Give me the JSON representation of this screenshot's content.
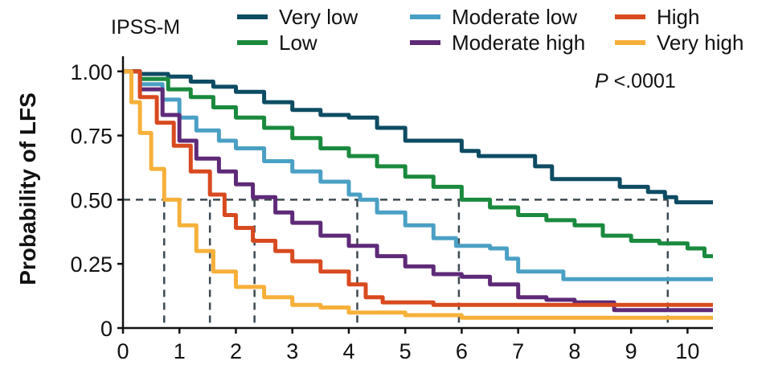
{
  "chart_data": {
    "type": "line",
    "title": "",
    "group_label": "IPSS-M",
    "xlabel": "",
    "ylabel": "Probability of LFS",
    "xlim": [
      0,
      10.45
    ],
    "ylim": [
      0,
      1.04
    ],
    "x_ticks": [
      "0",
      "1",
      "2",
      "3",
      "4",
      "5",
      "6",
      "7",
      "8",
      "9",
      "10"
    ],
    "y_ticks": [
      {
        "value": 0,
        "label": "0"
      },
      {
        "value": 0.25,
        "label": "0.25"
      },
      {
        "value": 0.5,
        "label": "0.50"
      },
      {
        "value": 0.75,
        "label": "0.75"
      },
      {
        "value": 1.0,
        "label": "1.00"
      }
    ],
    "annotation": {
      "p_italic": "P",
      "p_rest": " <.0001"
    },
    "median_reference_y": 0.5,
    "medians": [
      {
        "series": "Very high",
        "x": 0.73
      },
      {
        "series": "High",
        "x": 1.54
      },
      {
        "series": "Moderate high",
        "x": 2.33
      },
      {
        "series": "Moderate low",
        "x": 4.15
      },
      {
        "series": "Low",
        "x": 5.95
      },
      {
        "series": "Very low",
        "x": 9.65
      }
    ],
    "grid": false,
    "legend_position": "top",
    "series": [
      {
        "name": "Very low",
        "color": "#0d4c63",
        "points": [
          [
            0,
            1.0
          ],
          [
            0.3,
            0.99
          ],
          [
            0.8,
            0.98
          ],
          [
            1.2,
            0.96
          ],
          [
            1.6,
            0.94
          ],
          [
            2.0,
            0.92
          ],
          [
            2.5,
            0.88
          ],
          [
            3.0,
            0.85
          ],
          [
            3.5,
            0.83
          ],
          [
            4.0,
            0.82
          ],
          [
            4.5,
            0.78
          ],
          [
            5.0,
            0.73
          ],
          [
            5.5,
            0.73
          ],
          [
            6.0,
            0.69
          ],
          [
            6.3,
            0.67
          ],
          [
            6.8,
            0.67
          ],
          [
            7.3,
            0.63
          ],
          [
            7.6,
            0.58
          ],
          [
            8.0,
            0.58
          ],
          [
            8.5,
            0.58
          ],
          [
            8.8,
            0.55
          ],
          [
            9.3,
            0.53
          ],
          [
            9.6,
            0.51
          ],
          [
            9.8,
            0.49
          ],
          [
            10.45,
            0.49
          ]
        ]
      },
      {
        "name": "Low",
        "color": "#1a8a3e",
        "points": [
          [
            0,
            1.0
          ],
          [
            0.3,
            0.97
          ],
          [
            0.8,
            0.93
          ],
          [
            1.2,
            0.9
          ],
          [
            1.6,
            0.86
          ],
          [
            2.0,
            0.82
          ],
          [
            2.5,
            0.78
          ],
          [
            3.0,
            0.74
          ],
          [
            3.5,
            0.7
          ],
          [
            4.0,
            0.67
          ],
          [
            4.5,
            0.63
          ],
          [
            5.0,
            0.59
          ],
          [
            5.5,
            0.55
          ],
          [
            6.0,
            0.5
          ],
          [
            6.5,
            0.47
          ],
          [
            7.0,
            0.44
          ],
          [
            7.5,
            0.42
          ],
          [
            8.0,
            0.4
          ],
          [
            8.5,
            0.36
          ],
          [
            9.0,
            0.34
          ],
          [
            9.5,
            0.33
          ],
          [
            10.0,
            0.31
          ],
          [
            10.3,
            0.28
          ],
          [
            10.45,
            0.28
          ]
        ]
      },
      {
        "name": "Moderate low",
        "color": "#4aa0c4",
        "points": [
          [
            0,
            1.0
          ],
          [
            0.3,
            0.95
          ],
          [
            0.7,
            0.89
          ],
          [
            1.0,
            0.82
          ],
          [
            1.3,
            0.77
          ],
          [
            1.7,
            0.73
          ],
          [
            2.0,
            0.7
          ],
          [
            2.5,
            0.65
          ],
          [
            3.0,
            0.61
          ],
          [
            3.5,
            0.57
          ],
          [
            4.0,
            0.52
          ],
          [
            4.2,
            0.5
          ],
          [
            4.5,
            0.45
          ],
          [
            5.0,
            0.4
          ],
          [
            5.5,
            0.35
          ],
          [
            5.9,
            0.32
          ],
          [
            6.5,
            0.31
          ],
          [
            6.8,
            0.27
          ],
          [
            7.0,
            0.22
          ],
          [
            7.5,
            0.22
          ],
          [
            7.8,
            0.19
          ],
          [
            8.5,
            0.19
          ],
          [
            10.45,
            0.19
          ]
        ]
      },
      {
        "name": "Moderate high",
        "color": "#5e2a78",
        "points": [
          [
            0,
            1.0
          ],
          [
            0.3,
            0.93
          ],
          [
            0.7,
            0.83
          ],
          [
            1.0,
            0.73
          ],
          [
            1.3,
            0.66
          ],
          [
            1.7,
            0.61
          ],
          [
            2.0,
            0.56
          ],
          [
            2.3,
            0.51
          ],
          [
            2.7,
            0.45
          ],
          [
            3.0,
            0.41
          ],
          [
            3.5,
            0.36
          ],
          [
            4.0,
            0.32
          ],
          [
            4.5,
            0.28
          ],
          [
            5.0,
            0.24
          ],
          [
            5.5,
            0.21
          ],
          [
            6.0,
            0.2
          ],
          [
            6.5,
            0.17
          ],
          [
            7.0,
            0.12
          ],
          [
            7.5,
            0.11
          ],
          [
            8.0,
            0.1
          ],
          [
            8.7,
            0.1
          ],
          [
            8.7,
            0.07
          ],
          [
            10.45,
            0.07
          ]
        ]
      },
      {
        "name": "High",
        "color": "#d84a1f",
        "points": [
          [
            0,
            1.0
          ],
          [
            0.3,
            0.9
          ],
          [
            0.6,
            0.8
          ],
          [
            0.9,
            0.71
          ],
          [
            1.2,
            0.61
          ],
          [
            1.54,
            0.52
          ],
          [
            1.8,
            0.44
          ],
          [
            2.0,
            0.39
          ],
          [
            2.3,
            0.34
          ],
          [
            2.7,
            0.3
          ],
          [
            3.0,
            0.26
          ],
          [
            3.5,
            0.22
          ],
          [
            4.0,
            0.17
          ],
          [
            4.3,
            0.12
          ],
          [
            4.6,
            0.1
          ],
          [
            5.0,
            0.1
          ],
          [
            5.5,
            0.09
          ],
          [
            7.0,
            0.09
          ],
          [
            8.0,
            0.09
          ],
          [
            10.45,
            0.09
          ]
        ]
      },
      {
        "name": "Very high",
        "color": "#f6b03a",
        "points": [
          [
            0,
            1.0
          ],
          [
            0.15,
            0.88
          ],
          [
            0.3,
            0.76
          ],
          [
            0.5,
            0.62
          ],
          [
            0.73,
            0.5
          ],
          [
            1.0,
            0.4
          ],
          [
            1.3,
            0.3
          ],
          [
            1.6,
            0.22
          ],
          [
            2.0,
            0.16
          ],
          [
            2.5,
            0.12
          ],
          [
            3.0,
            0.09
          ],
          [
            3.5,
            0.08
          ],
          [
            4.0,
            0.06
          ],
          [
            5.0,
            0.05
          ],
          [
            6.0,
            0.04
          ],
          [
            10.45,
            0.04
          ]
        ]
      }
    ]
  }
}
